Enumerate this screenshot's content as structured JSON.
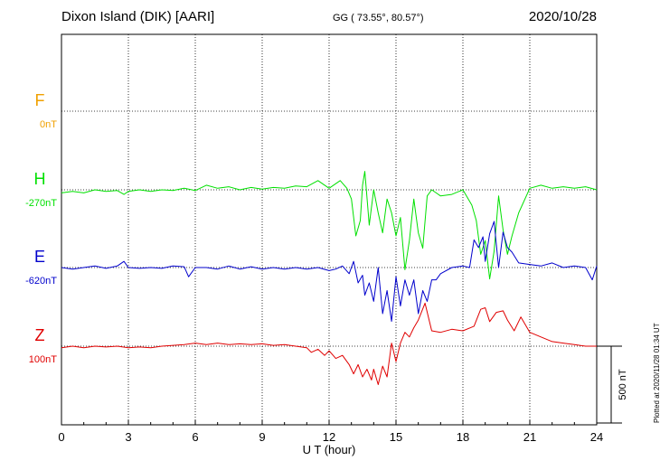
{
  "header": {
    "station": "Dixon Island (DIK)  [AARI]",
    "coordinates": "GG ( 73.55°,  80.57°)",
    "date": "2020/10/28"
  },
  "footer": {
    "plotted": "Plotted at 2020/11/28 01:34 UT"
  },
  "colors": {
    "F": "#f0a000",
    "H": "#00e000",
    "E": "#0000cc",
    "Z": "#e00000",
    "grid": "#000000"
  },
  "chart_data": {
    "type": "line",
    "title": "",
    "xlabel": "U T (hour)",
    "ylabel": "",
    "xlim": [
      0,
      24
    ],
    "x_ticks": [
      0,
      3,
      6,
      9,
      12,
      15,
      18,
      21,
      24
    ],
    "x_tick_labels": [
      "0",
      "3",
      "6",
      "9",
      "12",
      "15",
      "18",
      "21",
      "24"
    ],
    "scale_bar": {
      "label": "500 nT",
      "value_nT": 500
    },
    "grid": true,
    "series": [
      {
        "name": "F",
        "baseline_label": "0nT",
        "color": "#f0a000",
        "x": [],
        "y": []
      },
      {
        "name": "H",
        "baseline_label": "-270nT",
        "color": "#00e000",
        "x": [
          0,
          0.5,
          1,
          1.5,
          2,
          2.5,
          2.8,
          3,
          3.5,
          4,
          4.5,
          5,
          5.5,
          6,
          6.5,
          7,
          7.5,
          8,
          8.5,
          9,
          9.5,
          10,
          10.5,
          11,
          11.5,
          12,
          12.3,
          12.5,
          12.8,
          13,
          13.2,
          13.4,
          13.5,
          13.6,
          13.7,
          13.8,
          14,
          14.2,
          14.4,
          14.6,
          14.8,
          15,
          15.2,
          15.4,
          15.6,
          15.8,
          16,
          16.2,
          16.4,
          16.6,
          16.8,
          17,
          17.5,
          18,
          18.4,
          18.6,
          18.8,
          19,
          19.2,
          19.4,
          19.6,
          19.8,
          20,
          20.2,
          20.5,
          21,
          21.5,
          22,
          22.5,
          23,
          23.5,
          24
        ],
        "y": [
          -20,
          -10,
          -20,
          0,
          -10,
          -5,
          -30,
          -10,
          0,
          -10,
          0,
          -5,
          10,
          -5,
          30,
          10,
          20,
          0,
          15,
          5,
          15,
          10,
          25,
          20,
          60,
          10,
          40,
          60,
          10,
          -60,
          -300,
          -200,
          30,
          120,
          -50,
          -230,
          0,
          -150,
          -280,
          -60,
          -150,
          -300,
          -180,
          -520,
          -330,
          -60,
          -280,
          -380,
          -40,
          0,
          -20,
          -40,
          -30,
          0,
          -100,
          -200,
          -420,
          -330,
          -580,
          -400,
          -40,
          -260,
          -420,
          -300,
          -150,
          10,
          30,
          10,
          20,
          10,
          20,
          0
        ]
      },
      {
        "name": "E",
        "baseline_label": "-620nT",
        "color": "#0000cc",
        "x": [
          0,
          0.5,
          1,
          1.5,
          2,
          2.5,
          2.8,
          3,
          3.5,
          4,
          4.5,
          5,
          5.5,
          5.7,
          6,
          6.5,
          7,
          7.5,
          8,
          8.5,
          9,
          9.5,
          10,
          10.5,
          11,
          11.5,
          12,
          12.3,
          12.6,
          12.9,
          13.1,
          13.3,
          13.5,
          13.6,
          13.8,
          14,
          14.2,
          14.4,
          14.6,
          14.8,
          15,
          15.2,
          15.4,
          15.6,
          15.8,
          16,
          16.2,
          16.4,
          16.6,
          16.8,
          17,
          17.5,
          18,
          18.3,
          18.5,
          18.7,
          18.9,
          19,
          19.2,
          19.4,
          19.6,
          19.8,
          20,
          20.2,
          20.5,
          21,
          21.5,
          22,
          22.5,
          23,
          23.5,
          23.8,
          24
        ],
        "y": [
          0,
          -10,
          0,
          10,
          -5,
          10,
          40,
          0,
          -5,
          0,
          -5,
          10,
          5,
          -60,
          0,
          0,
          -10,
          10,
          -10,
          5,
          -10,
          0,
          -10,
          0,
          -10,
          0,
          -20,
          -10,
          10,
          -40,
          40,
          -100,
          -50,
          -180,
          -100,
          -220,
          0,
          -300,
          -150,
          -350,
          -60,
          -250,
          -80,
          -180,
          -80,
          -300,
          -150,
          -220,
          -80,
          -80,
          -40,
          0,
          10,
          0,
          180,
          130,
          200,
          40,
          220,
          300,
          0,
          230,
          130,
          100,
          30,
          20,
          10,
          30,
          0,
          10,
          0,
          -80,
          10
        ]
      },
      {
        "name": "Z",
        "baseline_label": "100nT",
        "color": "#e00000",
        "x": [
          0,
          0.5,
          1,
          1.5,
          2,
          2.5,
          3,
          3.5,
          4,
          4.5,
          5,
          5.5,
          6,
          6.5,
          7,
          7.5,
          8,
          8.5,
          9,
          9.5,
          10,
          10.5,
          11,
          11.2,
          11.5,
          11.8,
          12,
          12.3,
          12.6,
          12.9,
          13.1,
          13.3,
          13.5,
          13.7,
          13.9,
          14,
          14.2,
          14.4,
          14.6,
          14.8,
          15,
          15.2,
          15.4,
          15.6,
          15.8,
          16,
          16.3,
          16.6,
          17,
          17.5,
          18,
          18.5,
          18.8,
          19,
          19.2,
          19.5,
          19.8,
          20,
          20.3,
          20.6,
          21,
          21.5,
          22,
          22.5,
          23,
          23.5,
          24
        ],
        "y": [
          -10,
          0,
          -10,
          0,
          -5,
          0,
          -10,
          -5,
          -10,
          0,
          5,
          10,
          20,
          10,
          20,
          10,
          15,
          10,
          15,
          5,
          10,
          0,
          -10,
          -40,
          -20,
          -60,
          -30,
          -80,
          -60,
          -120,
          -180,
          -120,
          -200,
          -150,
          -220,
          -150,
          -250,
          -130,
          -200,
          20,
          -100,
          20,
          90,
          60,
          120,
          170,
          280,
          100,
          90,
          110,
          100,
          130,
          240,
          250,
          160,
          220,
          230,
          170,
          100,
          190,
          90,
          60,
          30,
          20,
          10,
          0,
          0
        ]
      }
    ]
  }
}
